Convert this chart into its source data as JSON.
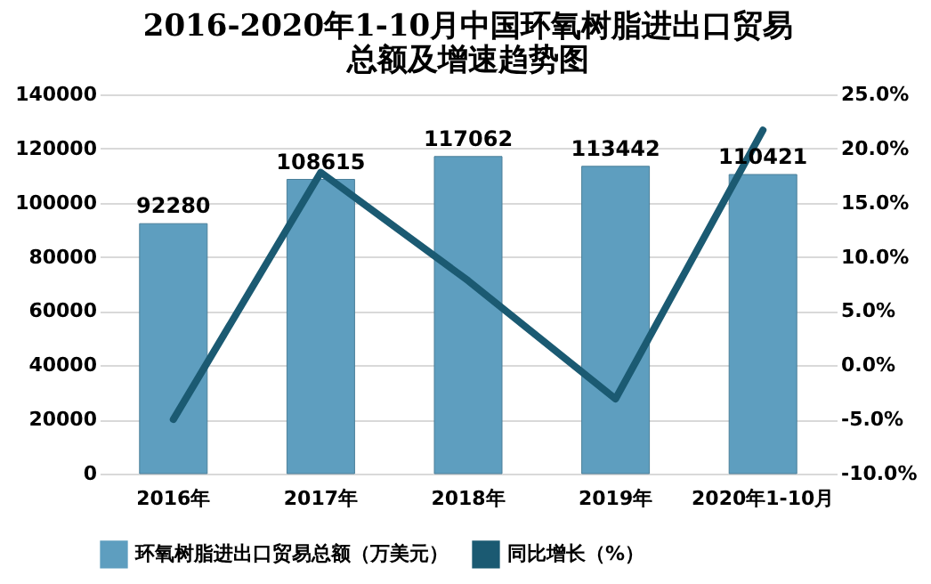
{
  "chart_data": {
    "type": "bar",
    "title": "2016-2020年1-10月中国环氧树脂进出口贸易总额及增速趋势图",
    "categories": [
      "2016年",
      "2017年",
      "2018年",
      "2019年",
      "2020年1-10月"
    ],
    "series": [
      {
        "name": "环氧树脂进出口贸易总额（万美元）",
        "color": "#5e9ebf",
        "values": [
          92280,
          108615,
          117062,
          113442,
          110421
        ],
        "value_labels": [
          "92280",
          "108615",
          "117062",
          "113442",
          "110421"
        ]
      },
      {
        "name": "同比增长（%）",
        "type": "line",
        "axis": "y2",
        "color": "#1b5a72",
        "values": [
          -5.0,
          17.8,
          7.8,
          -3.1,
          21.7
        ]
      }
    ],
    "ylim": [
      0,
      140000
    ],
    "yticks": [
      0,
      20000,
      40000,
      60000,
      80000,
      100000,
      120000,
      140000
    ],
    "y2lim": [
      -10,
      25
    ],
    "y2ticks": [
      {
        "value": -10,
        "label": "-10.0%"
      },
      {
        "value": -5,
        "label": "-5.0%"
      },
      {
        "value": 0,
        "label": "0.0%"
      },
      {
        "value": 5,
        "label": "5.0%"
      },
      {
        "value": 10,
        "label": "10.0%"
      },
      {
        "value": 15,
        "label": "15.0%"
      },
      {
        "value": 20,
        "label": "20.0%"
      },
      {
        "value": 25,
        "label": "25.0%"
      }
    ],
    "grid": "y",
    "legend": "bottom",
    "marker": "none",
    "line_style": "solid"
  }
}
